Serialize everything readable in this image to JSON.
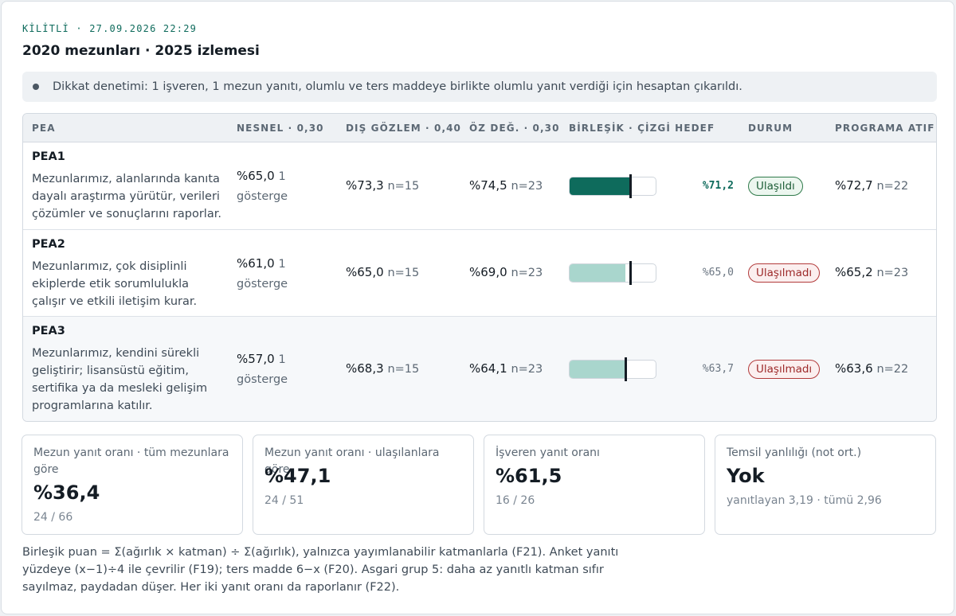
{
  "header": {
    "lock_status": "KİLİTLİ · 27.09.2026 22:29",
    "title": "2020 mezunları · 2025 izlemesi"
  },
  "notice": {
    "text": "Dikkat denetimi: 1 işveren, 1 mezun yanıtı, olumlu ve ters maddeye birlikte olumlu yanıt verdiği için hesaptan çıkarıldı."
  },
  "table": {
    "headers": {
      "pea": "PEA",
      "objective": "NESNEL · 0,30",
      "external": "DIŞ GÖZLEM · 0,40",
      "self": "ÖZ DEĞ. · 0,30",
      "composite": "BİRLEŞİK · ÇİZGİ HEDEF",
      "status": "DURUM",
      "program": "PROGRAMA ATIF"
    },
    "rows": [
      {
        "code": "PEA1",
        "description": "Mezunlarımız, alanlarında kanıta dayalı araştırma yürütür, verileri çözümler ve sonuçlarını raporlar.",
        "objective_value": "%65,0",
        "objective_note": "1 gösterge",
        "external_value": "%73,3",
        "external_n": "n=15",
        "self_value": "%74,5",
        "self_n": "n=23",
        "composite_score": "%71,2",
        "composite_fraction": 0.712,
        "target_fraction": 0.7,
        "status": "Ulaşıldı",
        "achieved": true,
        "program_value": "%72,7",
        "program_n": "n=22"
      },
      {
        "code": "PEA2",
        "description": "Mezunlarımız, çok disiplinli ekiplerde etik sorumlulukla çalışır ve etkili iletişim kurar.",
        "objective_value": "%61,0",
        "objective_note": "1 gösterge",
        "external_value": "%65,0",
        "external_n": "n=15",
        "self_value": "%69,0",
        "self_n": "n=23",
        "composite_score": "%65,0",
        "composite_fraction": 0.65,
        "target_fraction": 0.7,
        "status": "Ulaşılmadı",
        "achieved": false,
        "program_value": "%65,2",
        "program_n": "n=23"
      },
      {
        "code": "PEA3",
        "description": "Mezunlarımız, kendini sürekli geliştirir; lisansüstü eğitim, sertifika ya da mesleki gelişim programlarına katılır.",
        "objective_value": "%57,0",
        "objective_note": "1 gösterge",
        "external_value": "%68,3",
        "external_n": "n=15",
        "self_value": "%64,1",
        "self_n": "n=23",
        "composite_score": "%63,7",
        "composite_fraction": 0.637,
        "target_fraction": 0.65,
        "status": "Ulaşılmadı",
        "achieved": false,
        "program_value": "%63,6",
        "program_n": "n=22"
      }
    ]
  },
  "stats": [
    {
      "label": "Mezun yanıt oranı · tüm mezunlara göre",
      "value": "%36,4",
      "sub": "24 / 66"
    },
    {
      "label": "Mezun yanıt oranı · ulaşılanlara göre",
      "value": "%47,1",
      "sub": "24 / 51"
    },
    {
      "label": "İşveren yanıt oranı",
      "value": "%61,5",
      "sub": "16 / 26"
    },
    {
      "label": "Temsil yanlılığı (not ort.)",
      "value": "Yok",
      "sub": "yanıtlayan 3,19 · tümü 2,96"
    }
  ],
  "footnote": "Birleşik puan = Σ(ağırlık × katman) ÷ Σ(ağırlık), yalnızca yayımlanabilir katmanlarla (F21). Anket yanıtı yüzdeye (x−1)÷4 ile çevrilir (F19); ters madde 6−x (F20). Asgari grup 5: daha az yanıtlı katman sıfır sayılmaz, paydadan düşer. Her iki yanıt oranı da raporlanır (F22).",
  "colors": {
    "achieved_fill": "#0e6b5c",
    "not_achieved_fill": "#a9d6cd",
    "achieved_score": "#0e6b5c",
    "not_achieved_score": "#6b7682"
  }
}
